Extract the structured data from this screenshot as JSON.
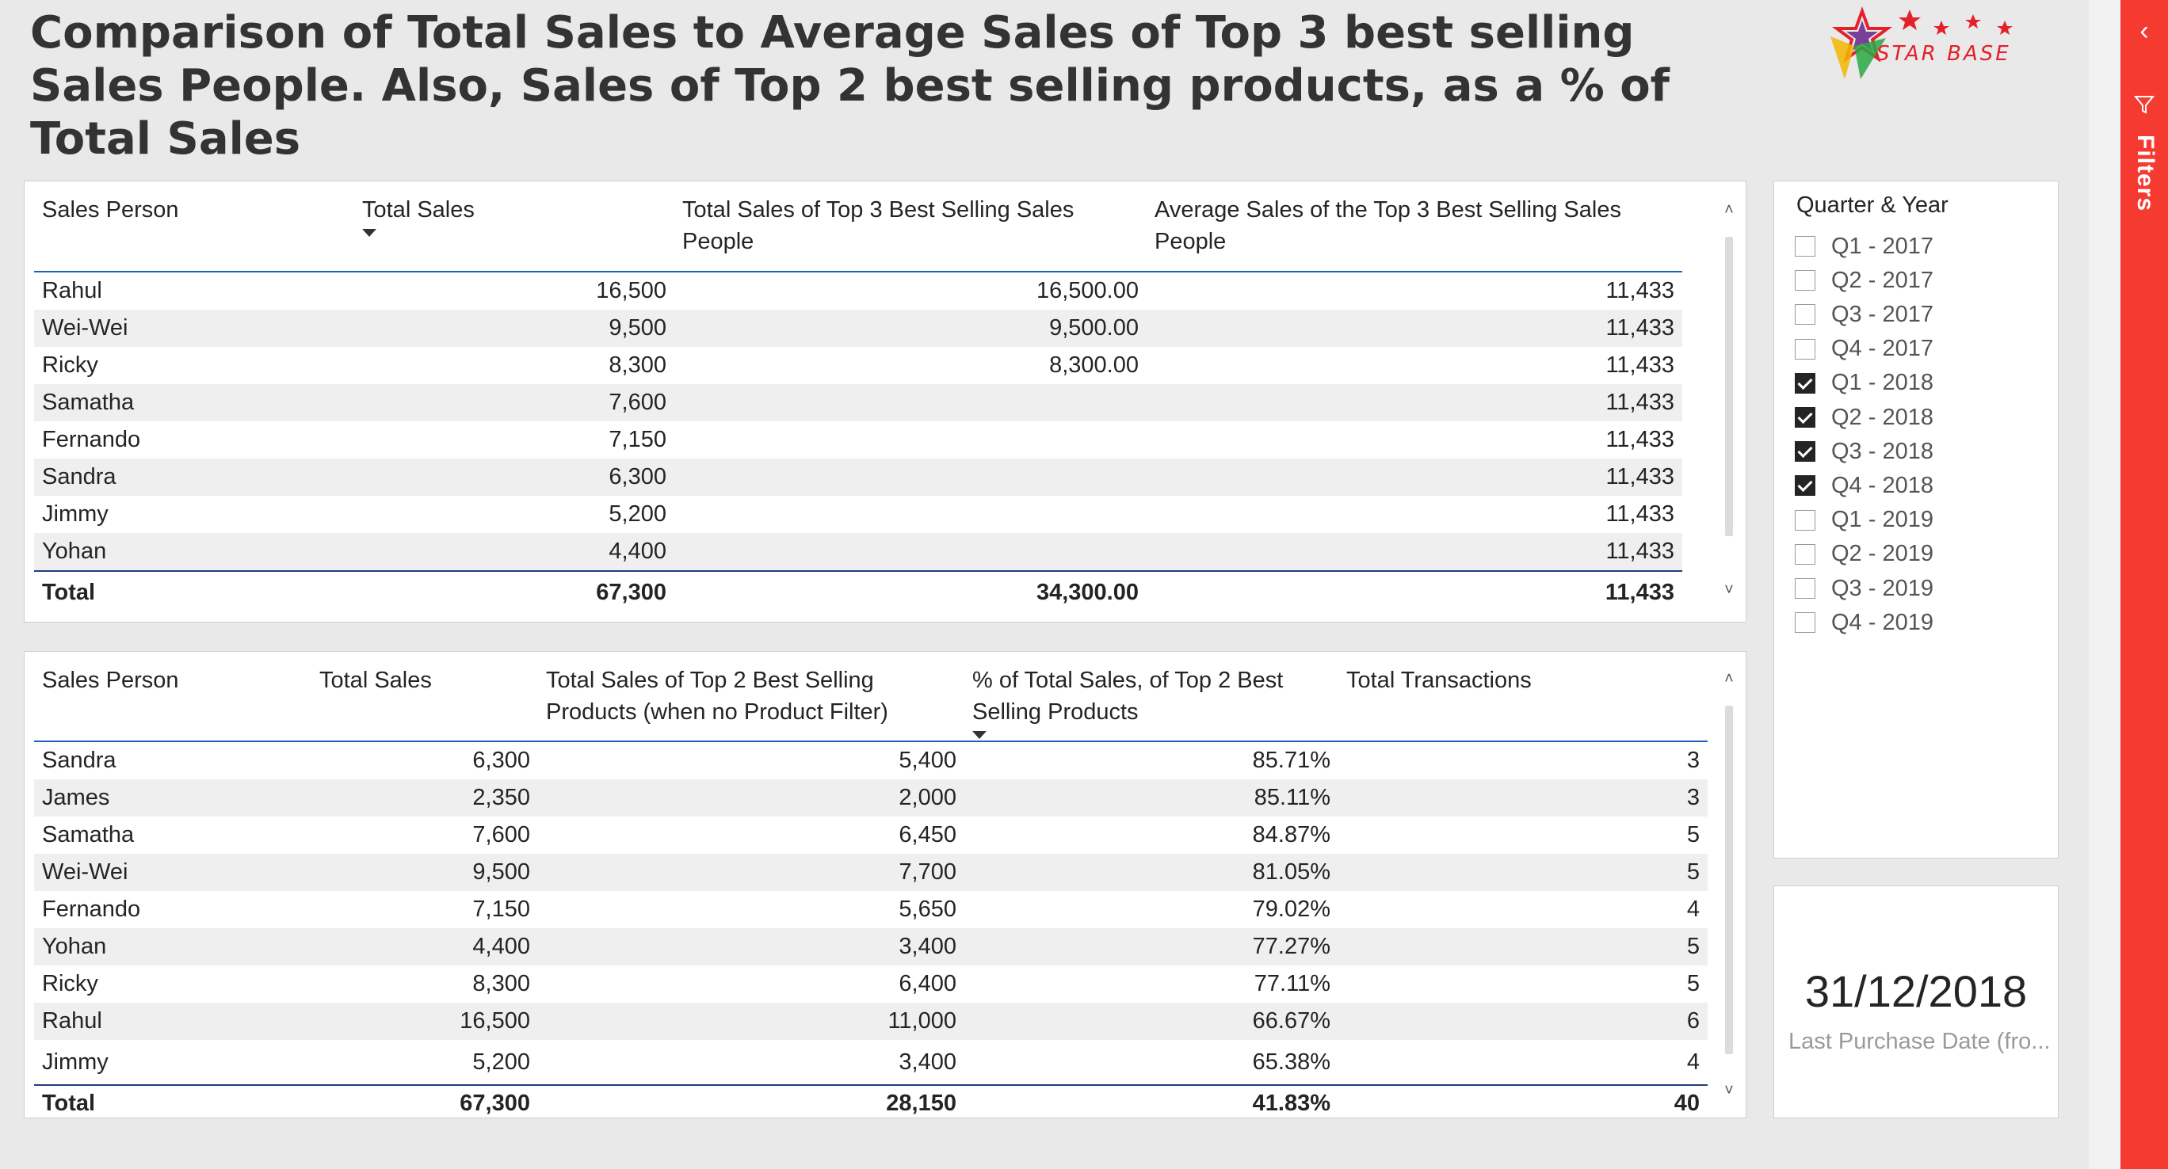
{
  "report": {
    "title": "Comparison of Total Sales to Average Sales of Top 3 best selling Sales People. Also, Sales of Top 2 best selling products, as a % of Total Sales",
    "logo_text": "STAR BASE",
    "brand_colors": {
      "accent_red": "#e4212b",
      "logo_purple": "#6b2d8f",
      "filters_red": "#f53a32",
      "header_rule": "#1f5fbf"
    }
  },
  "table1": {
    "headers": [
      "Sales Person",
      "Total Sales",
      "Total Sales of Top 3 Best Selling Sales People",
      "Average Sales of the Top 3 Best Selling Sales People"
    ],
    "sorted_column": "Total Sales",
    "rows": [
      [
        "Rahul",
        "16,500",
        "16,500.00",
        "11,433"
      ],
      [
        "Wei-Wei",
        "9,500",
        "9,500.00",
        "11,433"
      ],
      [
        "Ricky",
        "8,300",
        "8,300.00",
        "11,433"
      ],
      [
        "Samatha",
        "7,600",
        "",
        "11,433"
      ],
      [
        "Fernando",
        "7,150",
        "",
        "11,433"
      ],
      [
        "Sandra",
        "6,300",
        "",
        "11,433"
      ],
      [
        "Jimmy",
        "5,200",
        "",
        "11,433"
      ],
      [
        "Yohan",
        "4,400",
        "",
        "11,433"
      ]
    ],
    "total": [
      "Total",
      "67,300",
      "34,300.00",
      "11,433"
    ]
  },
  "table2": {
    "headers": [
      "Sales Person",
      "Total Sales",
      "Total Sales of Top 2 Best Selling Products (when no Product Filter)",
      "% of Total Sales, of Top 2 Best Selling Products",
      "Total Transactions"
    ],
    "sorted_column": "% of Total Sales, of Top 2 Best Selling Products",
    "rows": [
      [
        "Sandra",
        "6,300",
        "5,400",
        "85.71%",
        "3"
      ],
      [
        "James",
        "2,350",
        "2,000",
        "85.11%",
        "3"
      ],
      [
        "Samatha",
        "7,600",
        "6,450",
        "84.87%",
        "5"
      ],
      [
        "Wei-Wei",
        "9,500",
        "7,700",
        "81.05%",
        "5"
      ],
      [
        "Fernando",
        "7,150",
        "5,650",
        "79.02%",
        "4"
      ],
      [
        "Yohan",
        "4,400",
        "3,400",
        "77.27%",
        "5"
      ],
      [
        "Ricky",
        "8,300",
        "6,400",
        "77.11%",
        "5"
      ],
      [
        "Rahul",
        "16,500",
        "11,000",
        "66.67%",
        "6"
      ],
      [
        "Jimmy",
        "5,200",
        "3,400",
        "65.38%",
        "4"
      ]
    ],
    "total": [
      "Total",
      "67,300",
      "28,150",
      "41.83%",
      "40"
    ]
  },
  "slicer": {
    "title": "Quarter & Year",
    "items": [
      {
        "label": "Q1 - 2017",
        "checked": false
      },
      {
        "label": "Q2 - 2017",
        "checked": false
      },
      {
        "label": "Q3 - 2017",
        "checked": false
      },
      {
        "label": "Q4 - 2017",
        "checked": false
      },
      {
        "label": "Q1 - 2018",
        "checked": true
      },
      {
        "label": "Q2 - 2018",
        "checked": true
      },
      {
        "label": "Q3 - 2018",
        "checked": true
      },
      {
        "label": "Q4 - 2018",
        "checked": true
      },
      {
        "label": "Q1 - 2019",
        "checked": false
      },
      {
        "label": "Q2 - 2019",
        "checked": false
      },
      {
        "label": "Q3 - 2019",
        "checked": false
      },
      {
        "label": "Q4 - 2019",
        "checked": false
      }
    ]
  },
  "card": {
    "value": "31/12/2018",
    "label": "Last Purchase Date (fro..."
  },
  "filters_pane": {
    "label": "Filters",
    "collapse_icon": "chevron-left-icon",
    "filter_icon": "funnel-icon"
  }
}
